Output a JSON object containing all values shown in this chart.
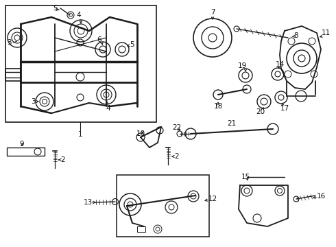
{
  "bg_color": "#ffffff",
  "lc": "#1a1a1a",
  "tc": "#111111",
  "figsize": [
    4.9,
    3.6
  ],
  "dpi": 100,
  "xlim": [
    0,
    490
  ],
  "ylim": [
    0,
    360
  ]
}
